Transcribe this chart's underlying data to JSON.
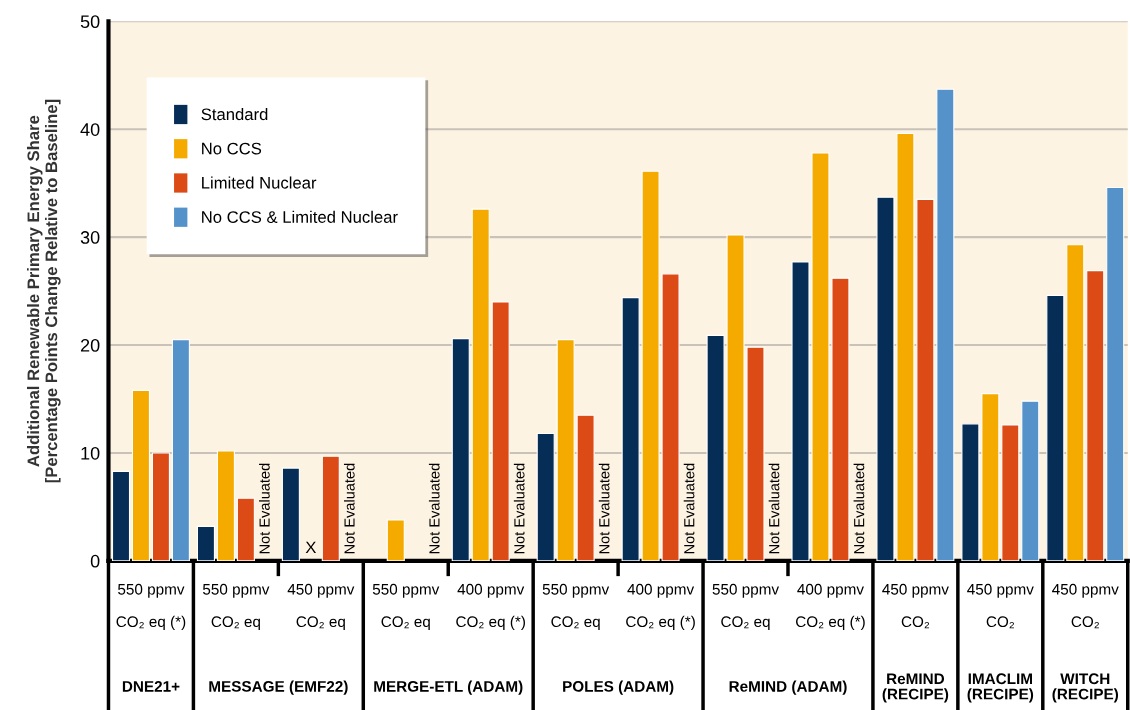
{
  "chart_data": {
    "type": "bar",
    "ylabel": "Additional Renewable Primary Energy Share\n[Percentage Points Change Relative to Baseline]",
    "categories": [
      "550 ppmv\nCO₂ eq (*)",
      "550 ppmv\nCO₂ eq",
      "450 ppmv\nCO₂ eq",
      "550 ppmv\nCO₂ eq",
      "400 ppmv\nCO₂ eq (*)",
      "550 ppmv\nCO₂ eq",
      "400 ppmv\nCO₂ eq (*)",
      "550 ppmv\nCO₂ eq",
      "400 ppmv\nCO₂ eq (*)",
      "450 ppmv\nCO₂",
      "450 ppmv\nCO₂",
      "450 ppmv\nCO₂"
    ],
    "series": [
      {
        "name": "Standard",
        "color": "#052d56",
        "values": [
          8.3,
          3.2,
          8.6,
          null,
          20.6,
          11.8,
          24.4,
          20.9,
          27.7,
          33.7,
          12.7,
          24.6
        ]
      },
      {
        "name": "No CCS",
        "color": "#f5aa00",
        "values": [
          15.8,
          10.2,
          null,
          3.8,
          32.6,
          20.5,
          36.1,
          30.2,
          37.8,
          39.6,
          15.5,
          29.3
        ]
      },
      {
        "name": "Limited Nuclear",
        "color": "#dc4a16",
        "values": [
          10.0,
          5.8,
          9.7,
          null,
          24.0,
          13.5,
          26.6,
          19.8,
          26.2,
          33.5,
          12.6,
          26.9
        ]
      },
      {
        "name": "No CCS & Limited Nuclear",
        "color": "#5592c9",
        "values": [
          20.5,
          null,
          null,
          null,
          null,
          null,
          null,
          null,
          null,
          43.7,
          14.8,
          34.6
        ]
      }
    ],
    "ylim": [
      0,
      50
    ],
    "yticks": [
      0,
      10,
      20,
      30,
      40,
      50
    ],
    "grid": "y",
    "legend": "top left",
    "annotations": [
      "Not Evaluated",
      "Not Evaluated",
      "Not Evaluated",
      "Not Evaluated",
      "Not Evaluated",
      "Not Evaluated",
      "Not Evaluated",
      "Not Evaluated",
      "X",
      "DNE21+",
      "MESSAGE (EMF22)",
      "MERGE-ETL (ADAM)",
      "POLES (ADAM)",
      "ReMIND (ADAM)",
      "ReMIND\n(RECIPE)",
      "IMACLIM\n(RECIPE)",
      "WITCH\n(RECIPE)"
    ]
  }
}
